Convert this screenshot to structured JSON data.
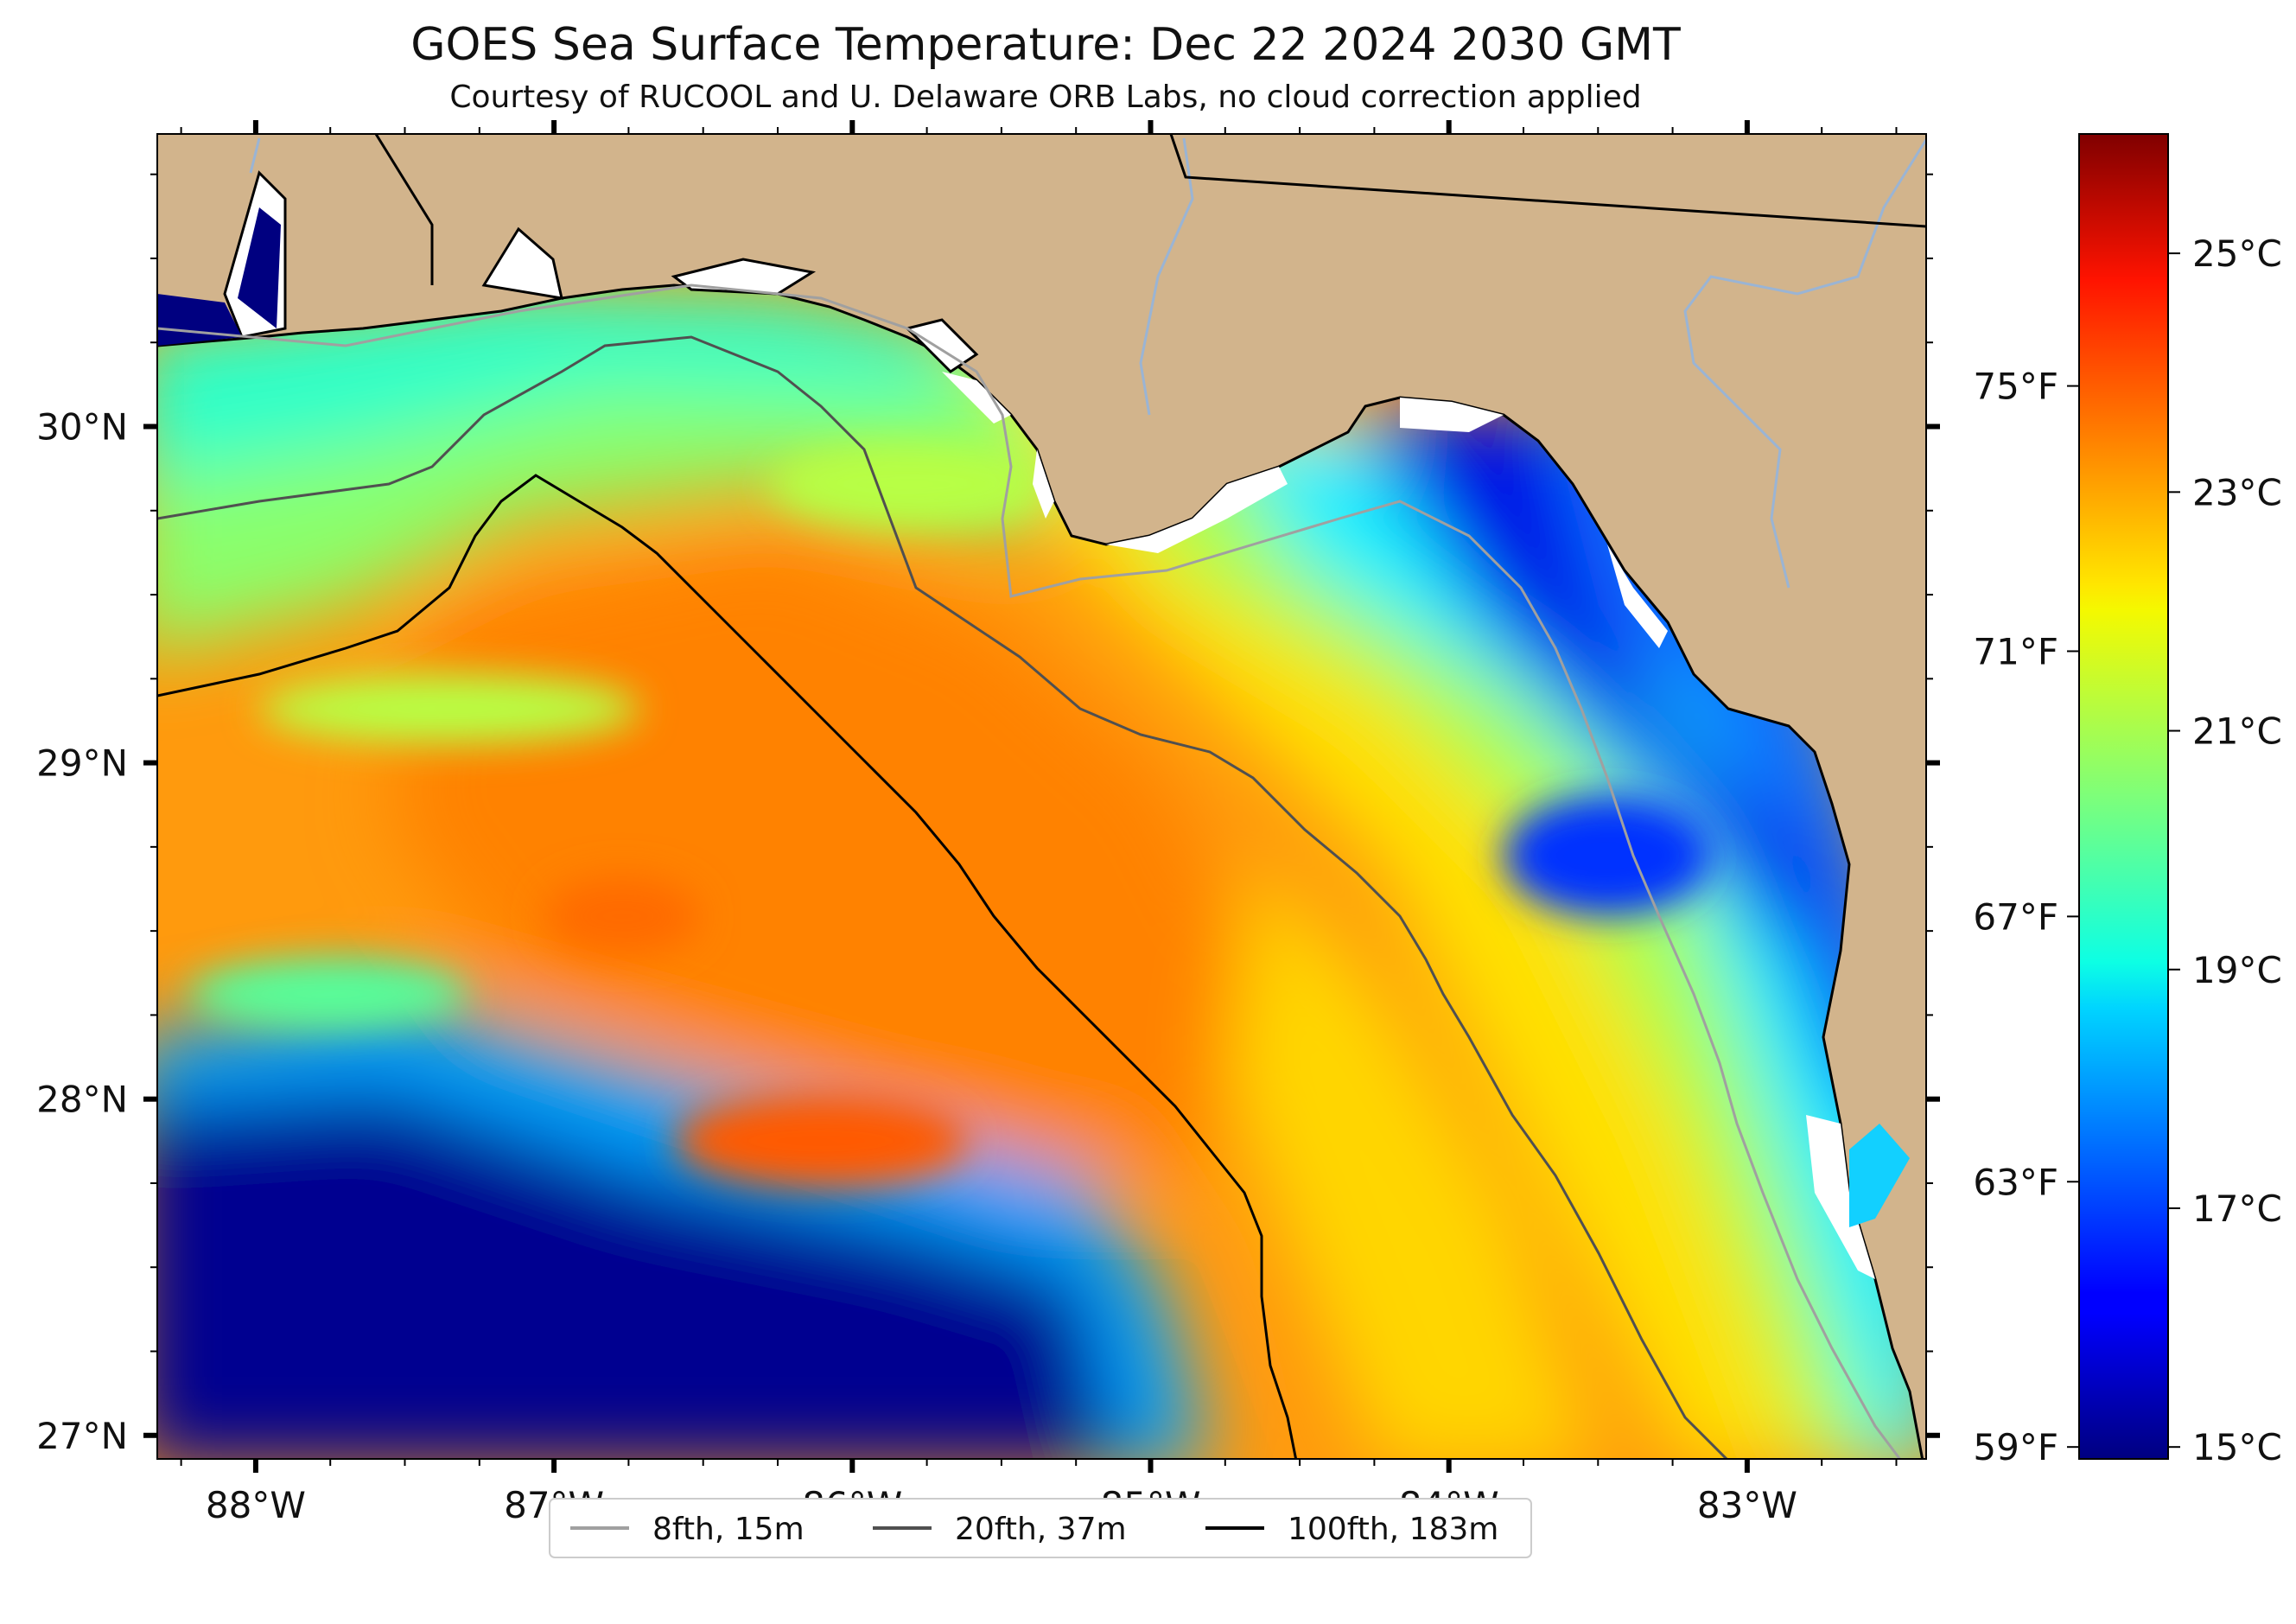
{
  "title": "GOES Sea Surface Temperature: Dec 22 2024 2030 GMT",
  "subtitle": "Courtesy of RUCOOL and U. Delaware ORB Labs, no cloud correction applied",
  "map": {
    "lon_range": [
      -88.33,
      -82.4
    ],
    "lat_range": [
      26.93,
      30.87
    ],
    "lon_ticks": [
      {
        "value": -88,
        "label": "88°W"
      },
      {
        "value": -87,
        "label": "87°W"
      },
      {
        "value": -86,
        "label": "86°W"
      },
      {
        "value": -85,
        "label": "85°W"
      },
      {
        "value": -84,
        "label": "84°W"
      },
      {
        "value": -83,
        "label": "83°W"
      }
    ],
    "lat_ticks": [
      {
        "value": 30,
        "label": "30°N"
      },
      {
        "value": 29,
        "label": "29°N"
      },
      {
        "value": 28,
        "label": "28°N"
      },
      {
        "value": 27,
        "label": "27°N"
      }
    ],
    "fahrenheit_ticks": [
      {
        "value": 75,
        "label": "75°F"
      },
      {
        "value": 71,
        "label": "71°F"
      },
      {
        "value": 67,
        "label": "67°F"
      },
      {
        "value": 63,
        "label": "63°F"
      },
      {
        "value": 59,
        "label": "59°F"
      }
    ],
    "land_color": "#d2b48c",
    "cloud_color": "#ffffff"
  },
  "colorbar": {
    "colormap": "jet",
    "range_c": [
      14.9,
      26.0
    ],
    "ticks": [
      {
        "value": 25,
        "label": "25°C"
      },
      {
        "value": 23,
        "label": "23°C"
      },
      {
        "value": 21,
        "label": "21°C"
      },
      {
        "value": 19,
        "label": "19°C"
      },
      {
        "value": 17,
        "label": "17°C"
      },
      {
        "value": 15,
        "label": "15°C"
      }
    ]
  },
  "legend": {
    "items": [
      {
        "label": "8fth, 15m",
        "color": "#a0a0a0"
      },
      {
        "label": "20fth, 37m",
        "color": "#505050"
      },
      {
        "label": "100fth, 183m",
        "color": "#000000"
      }
    ]
  }
}
